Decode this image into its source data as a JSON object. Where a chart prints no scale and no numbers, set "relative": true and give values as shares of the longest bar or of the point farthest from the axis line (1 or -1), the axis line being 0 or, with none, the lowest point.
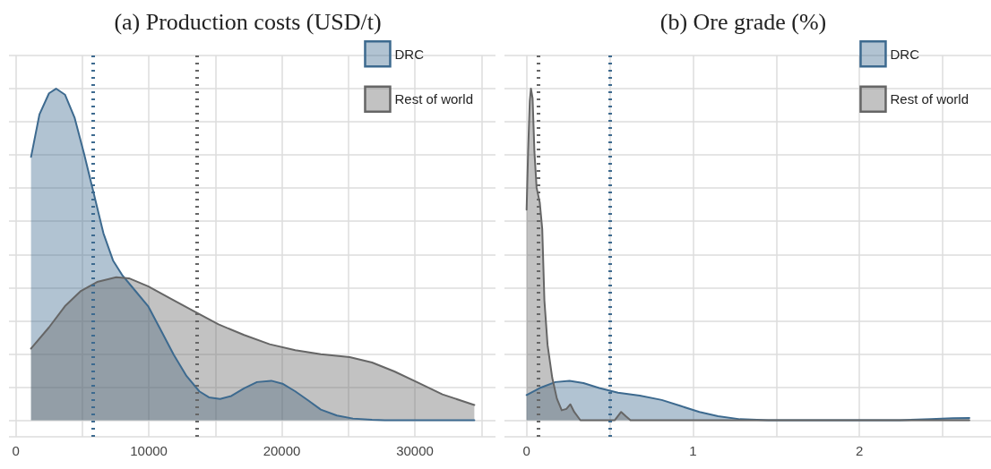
{
  "chart_data": [
    {
      "type": "area",
      "title": "(a) Production costs (USD/t)",
      "relative": true,
      "grid": true,
      "legend": "top right",
      "line_style": "solid",
      "marker": "none",
      "xlim": [
        -510,
        36060
      ],
      "xticks": [
        0,
        {
          "value": 5000,
          "label": null
        },
        10000,
        {
          "value": 15000,
          "label": null
        },
        20000,
        {
          "value": 25000,
          "label": null
        },
        30000,
        {
          "value": 35000,
          "label": null
        }
      ],
      "ref_lines": [
        {
          "axis": "x",
          "value": 5800,
          "color": "#3d6a8f",
          "line_style": "dotted"
        },
        {
          "axis": "x",
          "value": 13600,
          "color": "#666666",
          "line_style": "dotted"
        }
      ],
      "series": [
        {
          "name": "DRC",
          "color": "#3d6a8f",
          "x": [
            1150,
            1780,
            2500,
            3030,
            3700,
            4420,
            5140,
            5870,
            6590,
            7310,
            8030,
            8990,
            9950,
            10910,
            11880,
            12840,
            13800,
            14520,
            15360,
            16200,
            17160,
            18130,
            19210,
            20050,
            21010,
            21970,
            22930,
            24140,
            25340,
            26780,
            27740,
            34470
          ],
          "values": [
            0.794,
            0.922,
            0.986,
            1,
            0.982,
            0.913,
            0.803,
            0.683,
            0.564,
            0.482,
            0.436,
            0.39,
            0.344,
            0.271,
            0.197,
            0.133,
            0.087,
            0.069,
            0.064,
            0.073,
            0.096,
            0.115,
            0.119,
            0.11,
            0.087,
            0.06,
            0.032,
            0.014,
            0.005,
            0.001,
            0,
            0
          ]
        },
        {
          "name": "Rest of world",
          "color": "#666666",
          "x": [
            1150,
            2500,
            3700,
            4900,
            6110,
            7550,
            8510,
            9950,
            11640,
            13320,
            15240,
            17160,
            19090,
            21010,
            22930,
            25100,
            26780,
            28460,
            30150,
            32070,
            34470
          ],
          "values": [
            0.216,
            0.28,
            0.344,
            0.39,
            0.417,
            0.431,
            0.428,
            0.404,
            0.367,
            0.33,
            0.289,
            0.257,
            0.229,
            0.211,
            0.199,
            0.19,
            0.174,
            0.147,
            0.115,
            0.078,
            0.046
          ]
        }
      ]
    },
    {
      "type": "area",
      "title": "(b) Ore grade (%)",
      "relative": true,
      "grid": true,
      "legend": "top right",
      "line_style": "solid",
      "marker": "none",
      "xlim": [
        -0.133,
        2.79
      ],
      "xticks": [
        0,
        {
          "value": 0.5,
          "label": null
        },
        1,
        {
          "value": 1.5,
          "label": null
        },
        2,
        {
          "value": 2.5,
          "label": null
        }
      ],
      "ref_lines": [
        {
          "axis": "x",
          "value": 0.07,
          "color": "#666666",
          "line_style": "dotted"
        },
        {
          "axis": "x",
          "value": 0.5,
          "color": "#3d6a8f",
          "line_style": "dotted"
        }
      ],
      "series": [
        {
          "name": "DRC",
          "color": "#3d6a8f",
          "x": [
            0,
            0.079,
            0.173,
            0.258,
            0.342,
            0.436,
            0.549,
            0.68,
            0.812,
            0.925,
            1.038,
            1.15,
            1.282,
            1.451,
            2.241,
            2.429,
            2.56,
            2.66
          ],
          "values": [
            0.076,
            0.097,
            0.115,
            0.119,
            0.112,
            0.097,
            0.083,
            0.074,
            0.061,
            0.043,
            0.025,
            0.012,
            0.003,
            0,
            0,
            0.003,
            0.006,
            0.007
          ]
        },
        {
          "name": "Rest of world",
          "color": "#666666",
          "x": [
            0,
            0.009,
            0.019,
            0.026,
            0.036,
            0.047,
            0.06,
            0.079,
            0.094,
            0.107,
            0.126,
            0.154,
            0.182,
            0.211,
            0.239,
            0.263,
            0.286,
            0.323,
            0.53,
            0.568,
            0.596,
            0.624,
            2.66
          ],
          "values": [
            0.635,
            0.81,
            0.962,
            1,
            0.971,
            0.81,
            0.702,
            0.657,
            0.577,
            0.361,
            0.227,
            0.128,
            0.065,
            0.03,
            0.034,
            0.048,
            0.025,
            0,
            0,
            0.025,
            0.012,
            0,
            0
          ]
        }
      ]
    }
  ]
}
